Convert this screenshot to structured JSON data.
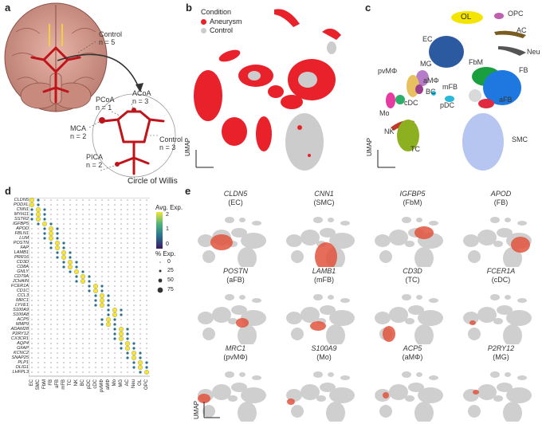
{
  "panels": {
    "a": {
      "letter": "a",
      "labels": {
        "control_top": "Control",
        "control_top_n": "n = 5",
        "acoa": "ACoA",
        "acoa_n": "n = 3",
        "pcoa": "PCoA",
        "pcoa_n": "n = 1",
        "mca": "MCA",
        "mca_n": "n = 2",
        "control_right": "Control",
        "control_right_n": "n = 3",
        "pica": "PICA",
        "pica_n": "n = 2",
        "circle": "Circle of Willis"
      }
    },
    "b": {
      "letter": "b",
      "legend_title": "Condition",
      "legend": [
        {
          "label": "Aneurysm",
          "color": "#e8212b"
        },
        {
          "label": "Control",
          "color": "#cccccc"
        }
      ],
      "axis": "UMAP"
    },
    "c": {
      "letter": "c",
      "axis": "UMAP",
      "clusters": [
        {
          "label": "OL",
          "color": "#f4e500"
        },
        {
          "label": "OPC",
          "color": "#c05fb0"
        },
        {
          "label": "AC",
          "color": "#7a5c20"
        },
        {
          "label": "Neu",
          "color": "#555555"
        },
        {
          "label": "EC",
          "color": "#2c5aa0"
        },
        {
          "label": "FbM",
          "color": "#1a9f3e"
        },
        {
          "label": "FB",
          "color": "#1f78e0"
        },
        {
          "label": "MG",
          "color": "#b57cc7"
        },
        {
          "label": "pvMΦ",
          "color": "#e8c060"
        },
        {
          "label": "aMΦ",
          "color": "#9b3d8f"
        },
        {
          "label": "mFB",
          "color": "#d9d9d9"
        },
        {
          "label": "aFB",
          "color": "#e02a40"
        },
        {
          "label": "Mo",
          "color": "#e43ca0"
        },
        {
          "label": "cDC",
          "color": "#2fae6a"
        },
        {
          "label": "BC",
          "color": "#1dc0e6"
        },
        {
          "label": "pDC",
          "color": "#2ab9d9"
        },
        {
          "label": "NK",
          "color": "#c0392b"
        },
        {
          "label": "TC",
          "color": "#8db020"
        },
        {
          "label": "SMC",
          "color": "#b7c6f0"
        }
      ]
    },
    "d": {
      "letter": "d",
      "genes": [
        "CLDN5",
        "PODXL",
        "CNN1",
        "MYH11",
        "SSTR2",
        "IGFBP5",
        "APOD",
        "FBLN1",
        "LUM",
        "POSTN",
        "FAP",
        "LAMB1",
        "PRR16",
        "CD3D",
        "CD8A",
        "GNLY",
        "CD79A",
        "JCHAIN",
        "FCER1A",
        "CD1C",
        "CCL3",
        "MRC1",
        "LYVE1",
        "S100A9",
        "S100A8",
        "ACP5",
        "MMP9",
        "ADAM28",
        "P2RY12",
        "CX3CR1",
        "AQP4",
        "GFAP",
        "KCNC2",
        "SNAP25",
        "PLP1",
        "OLIG1",
        "LHFPL3"
      ],
      "cell_types": [
        "EC",
        "SMC",
        "FbM",
        "FB",
        "aFB",
        "mFB",
        "TC",
        "NK",
        "BC",
        "pDC",
        "cDC",
        "pvMΦ",
        "aMΦ",
        "Mo",
        "MG",
        "AC",
        "Neu",
        "OL",
        "OPC"
      ],
      "legend_avg_title": "Avg. Exp.",
      "legend_avg_ticks": [
        "2",
        "1",
        "0"
      ],
      "legend_pct_title": "% Exp.",
      "legend_pct_ticks": [
        "0",
        "25",
        "50",
        "75"
      ]
    },
    "e": {
      "letter": "e",
      "axis": "UMAP",
      "features": [
        {
          "gene": "CLDN5",
          "cell": "(EC)"
        },
        {
          "gene": "CNN1",
          "cell": "(SMC)"
        },
        {
          "gene": "IGFBP5",
          "cell": "(FbM)"
        },
        {
          "gene": "APOD",
          "cell": "(FB)"
        },
        {
          "gene": "POSTN",
          "cell": "(aFB)"
        },
        {
          "gene": "LAMB1",
          "cell": "(mFB)"
        },
        {
          "gene": "CD3D",
          "cell": "(TC)"
        },
        {
          "gene": "FCER1A",
          "cell": "(cDC)"
        },
        {
          "gene": "MRC1",
          "cell": "(pvMΦ)"
        },
        {
          "gene": "S100A9",
          "cell": "(Mo)"
        },
        {
          "gene": "ACP5",
          "cell": "(aMΦ)"
        },
        {
          "gene": "P2RY12",
          "cell": "(MG)"
        }
      ]
    }
  }
}
